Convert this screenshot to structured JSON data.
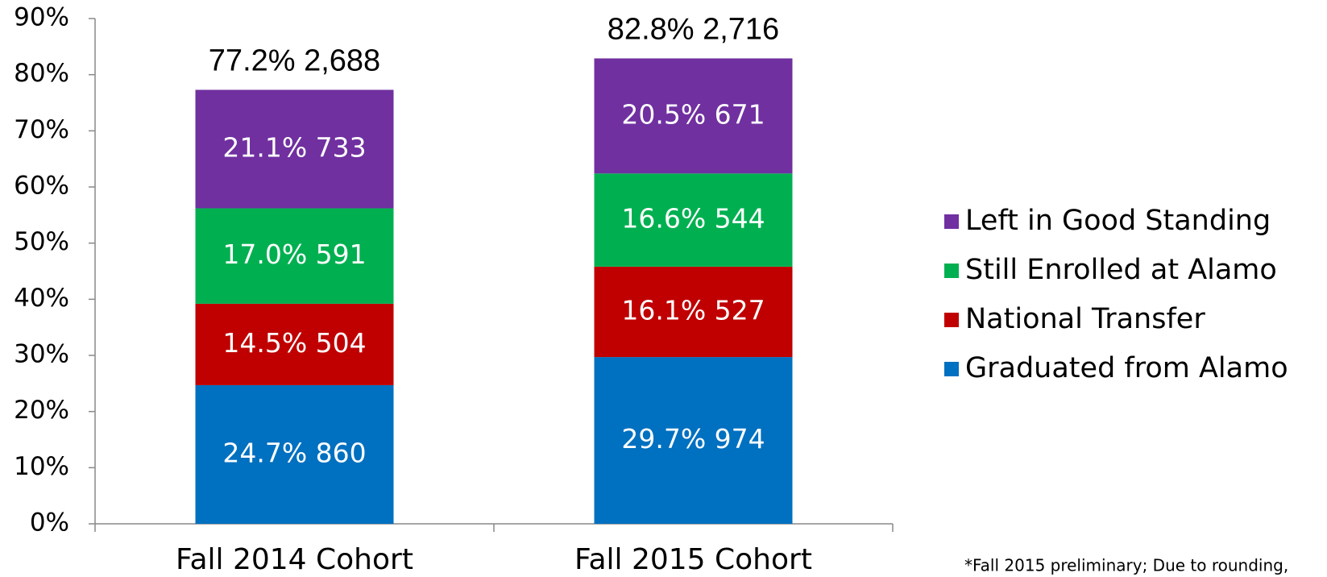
{
  "chart_data": {
    "type": "stacked_bar",
    "categories": [
      "Fall 2014 Cohort",
      "Fall 2015 Cohort"
    ],
    "series": [
      {
        "name": "Graduated from Alamo",
        "color": "#0070c0",
        "values": [
          24.7,
          29.7
        ],
        "value_labels": [
          "24.7% 860",
          "29.7% 974"
        ]
      },
      {
        "name": "National Transfer",
        "color": "#c00000",
        "values": [
          14.5,
          16.1
        ],
        "value_labels": [
          "14.5% 504",
          "16.1% 527"
        ]
      },
      {
        "name": "Still Enrolled at Alamo",
        "color": "#00b050",
        "values": [
          17.0,
          16.6
        ],
        "value_labels": [
          "17.0% 591",
          "16.6% 544"
        ]
      },
      {
        "name": "Left in Good Standing",
        "color": "#7030a0",
        "values": [
          21.1,
          20.5
        ],
        "value_labels": [
          "21.1% 733",
          "20.5% 671"
        ]
      }
    ],
    "totals": [
      "77.2% 2,688",
      "82.8% 2,716"
    ],
    "ylim": [
      0,
      90
    ],
    "yticks": [
      {
        "value": 0,
        "label": "0%"
      },
      {
        "value": 10,
        "label": "10%"
      },
      {
        "value": 20,
        "label": "20%"
      },
      {
        "value": 30,
        "label": "30%"
      },
      {
        "value": 40,
        "label": "40%"
      },
      {
        "value": 50,
        "label": "50%"
      },
      {
        "value": 60,
        "label": "60%"
      },
      {
        "value": 70,
        "label": "70%"
      },
      {
        "value": 80,
        "label": "80%"
      },
      {
        "value": 90,
        "label": "90%"
      }
    ],
    "legend": "right",
    "footnote": "*Fall 2015 preliminary; Due to rounding,"
  }
}
